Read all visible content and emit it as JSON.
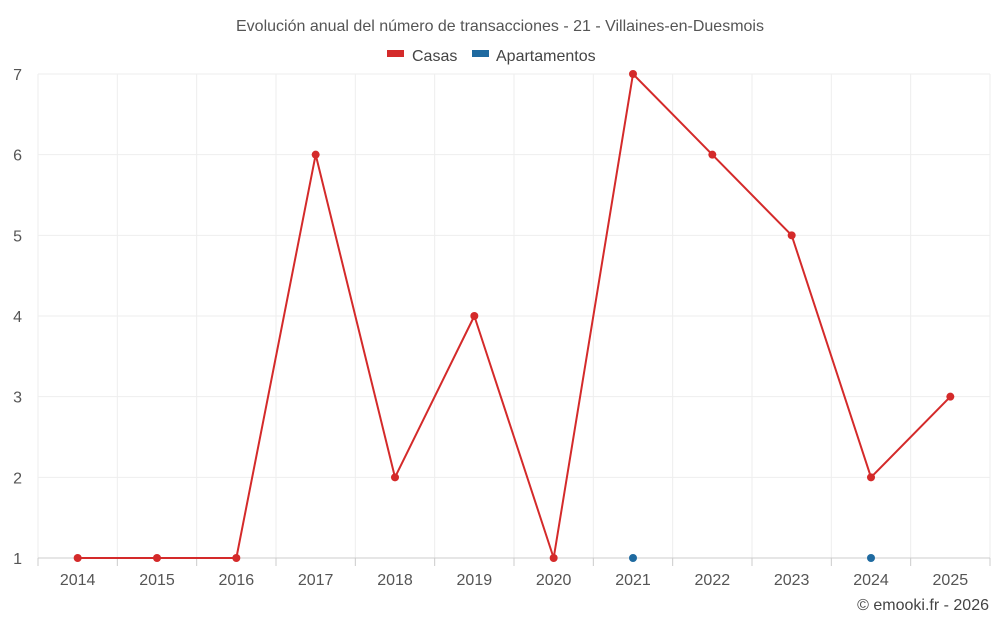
{
  "chart_data": {
    "type": "line",
    "title": "Evolución anual del número de transacciones - 21 - Villaines-en-Duesmois",
    "xlabel": "",
    "ylabel": "",
    "x": [
      "2014",
      "2015",
      "2016",
      "2017",
      "2018",
      "2019",
      "2020",
      "2021",
      "2022",
      "2023",
      "2024",
      "2025"
    ],
    "ylim": [
      1,
      7
    ],
    "yticks": [
      "1",
      "2",
      "3",
      "4",
      "5",
      "6",
      "7"
    ],
    "grid": true,
    "legend_position": "top-center",
    "series": [
      {
        "name": "Casas",
        "color": "#d42a2a",
        "values": [
          1,
          1,
          1,
          6,
          2,
          4,
          1,
          7,
          6,
          5,
          2,
          3
        ]
      },
      {
        "name": "Apartamentos",
        "color": "#1f6aa0",
        "values": [
          null,
          null,
          null,
          null,
          null,
          null,
          null,
          1,
          null,
          null,
          1,
          null
        ]
      }
    ],
    "credit": "© emooki.fr - 2026"
  }
}
